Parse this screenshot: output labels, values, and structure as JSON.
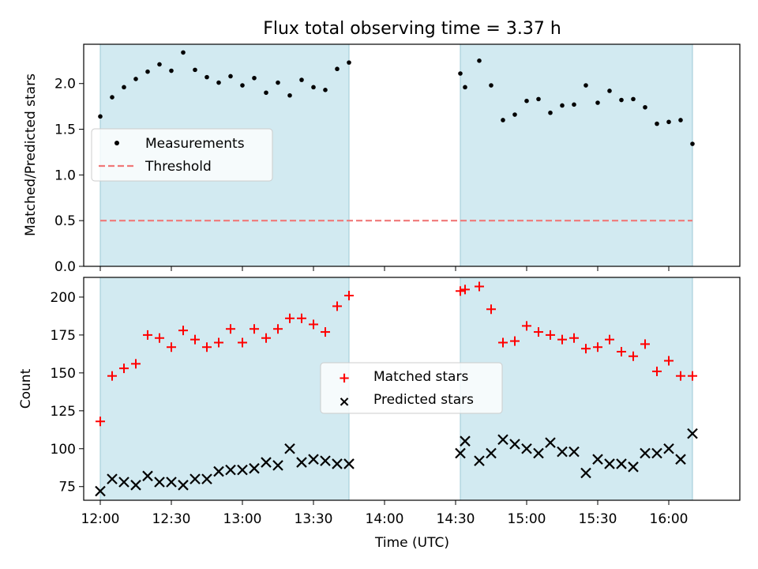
{
  "title": "Flux total observing time = 3.37 h",
  "chart_data": [
    {
      "type": "scatter",
      "ylabel": "Matched/Predicted stars",
      "ylim": [
        0,
        2.43
      ],
      "yticks": [
        "0.0",
        "0.5",
        "1.0",
        "1.5",
        "2.0"
      ],
      "ytick_values": [
        0,
        0.5,
        1.0,
        1.5,
        2.0
      ],
      "threshold": 0.5,
      "legend": {
        "placement": "center-left",
        "items": [
          "Measurements",
          "Threshold"
        ]
      },
      "series": [
        {
          "name": "Measurements",
          "color": "#000000",
          "x": [
            "12:00",
            "12:05",
            "12:10",
            "12:15",
            "12:20",
            "12:25",
            "12:30",
            "12:35",
            "12:40",
            "12:45",
            "12:50",
            "12:55",
            "13:00",
            "13:05",
            "13:10",
            "13:15",
            "13:20",
            "13:25",
            "13:30",
            "13:35",
            "13:40",
            "13:45",
            "14:32",
            "14:34",
            "14:40",
            "14:45",
            "14:50",
            "14:55",
            "15:00",
            "15:05",
            "15:10",
            "15:15",
            "15:20",
            "15:25",
            "15:30",
            "15:35",
            "15:40",
            "15:45",
            "15:50",
            "15:55",
            "16:00",
            "16:05",
            "16:10"
          ],
          "values": [
            1.64,
            1.85,
            1.96,
            2.05,
            2.13,
            2.21,
            2.14,
            2.34,
            2.15,
            2.07,
            2.01,
            2.08,
            1.98,
            2.06,
            1.9,
            2.01,
            1.87,
            2.04,
            1.96,
            1.93,
            2.16,
            2.23,
            2.11,
            1.96,
            2.25,
            1.98,
            1.6,
            1.66,
            1.81,
            1.83,
            1.68,
            1.76,
            1.77,
            1.98,
            1.79,
            1.92,
            1.82,
            1.83,
            1.74,
            1.56,
            1.58,
            1.6,
            1.34
          ]
        }
      ]
    },
    {
      "type": "scatter",
      "xlabel": "Time (UTC)",
      "ylabel": "Count",
      "ylim": [
        66,
        213
      ],
      "yticks": [
        "75",
        "100",
        "125",
        "150",
        "175",
        "200"
      ],
      "ytick_values": [
        75,
        100,
        125,
        150,
        175,
        200
      ],
      "xticks": [
        "12:00",
        "12:30",
        "13:00",
        "13:30",
        "14:00",
        "14:30",
        "15:00",
        "15:30",
        "16:00"
      ],
      "legend": {
        "placement": "center",
        "items": [
          "Matched stars",
          "Predicted stars"
        ]
      },
      "series": [
        {
          "name": "Matched stars",
          "color": "#ff0000",
          "x": [
            "12:00",
            "12:05",
            "12:10",
            "12:15",
            "12:20",
            "12:25",
            "12:30",
            "12:35",
            "12:40",
            "12:45",
            "12:50",
            "12:55",
            "13:00",
            "13:05",
            "13:10",
            "13:15",
            "13:20",
            "13:25",
            "13:30",
            "13:35",
            "13:40",
            "13:45",
            "14:32",
            "14:34",
            "14:40",
            "14:45",
            "14:50",
            "14:55",
            "15:00",
            "15:05",
            "15:10",
            "15:15",
            "15:20",
            "15:25",
            "15:30",
            "15:35",
            "15:40",
            "15:45",
            "15:50",
            "15:55",
            "16:00",
            "16:05",
            "16:10"
          ],
          "values": [
            118,
            148,
            153,
            156,
            175,
            173,
            167,
            178,
            172,
            167,
            170,
            179,
            170,
            179,
            173,
            179,
            186,
            186,
            182,
            177,
            194,
            201,
            204,
            205,
            207,
            192,
            170,
            171,
            181,
            177,
            175,
            172,
            173,
            166,
            167,
            172,
            164,
            161,
            169,
            151,
            158,
            148,
            148
          ]
        },
        {
          "name": "Predicted stars",
          "color": "#000000",
          "x": [
            "12:00",
            "12:05",
            "12:10",
            "12:15",
            "12:20",
            "12:25",
            "12:30",
            "12:35",
            "12:40",
            "12:45",
            "12:50",
            "12:55",
            "13:00",
            "13:05",
            "13:10",
            "13:15",
            "13:20",
            "13:25",
            "13:30",
            "13:35",
            "13:40",
            "13:45",
            "14:32",
            "14:34",
            "14:40",
            "14:45",
            "14:50",
            "14:55",
            "15:00",
            "15:05",
            "15:10",
            "15:15",
            "15:20",
            "15:25",
            "15:30",
            "15:35",
            "15:40",
            "15:45",
            "15:50",
            "15:55",
            "16:00",
            "16:05",
            "16:10"
          ],
          "values": [
            72,
            80,
            78,
            76,
            82,
            78,
            78,
            76,
            80,
            80,
            85,
            86,
            86,
            87,
            91,
            89,
            100,
            91,
            93,
            92,
            90,
            90,
            97,
            105,
            92,
            97,
            106,
            103,
            100,
            97,
            104,
            98,
            98,
            84,
            93,
            90,
            90,
            88,
            97,
            97,
            100,
            93,
            110
          ]
        }
      ]
    }
  ],
  "observing_windows": [
    [
      "12:00",
      "13:45"
    ],
    [
      "14:32",
      "16:10"
    ]
  ],
  "xrange": [
    "11:53",
    "16:30"
  ],
  "shade_color": "#add8e6"
}
